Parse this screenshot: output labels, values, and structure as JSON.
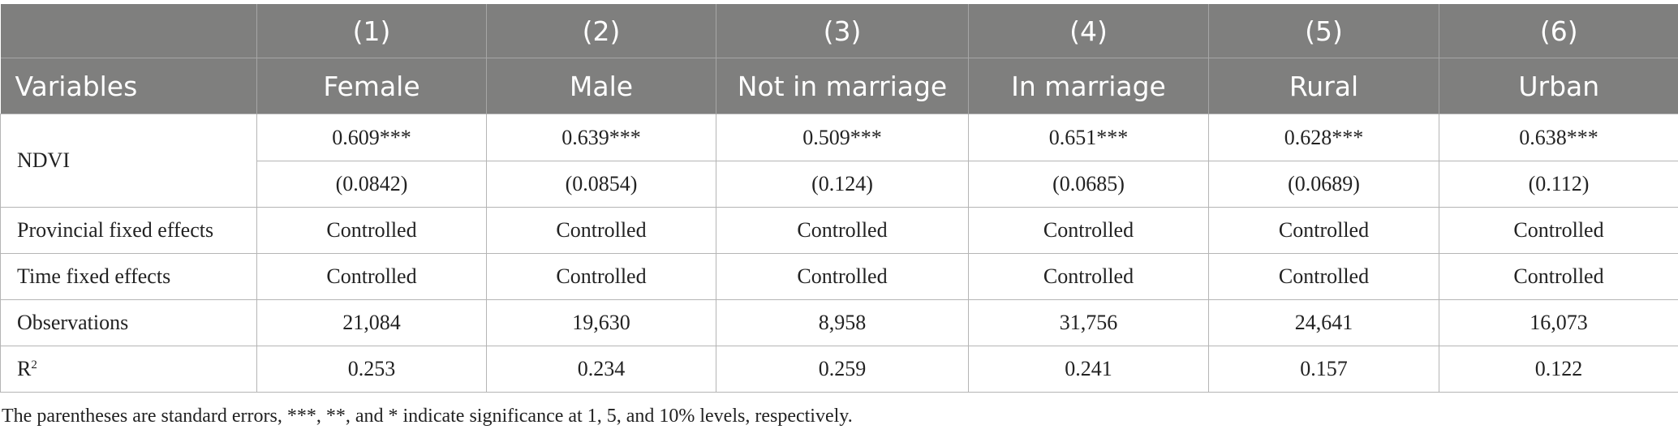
{
  "table": {
    "header_numbers": [
      "(1)",
      "(2)",
      "(3)",
      "(4)",
      "(5)",
      "(6)"
    ],
    "variables_label": "Variables",
    "header_groups": [
      "Female",
      "Male",
      "Not in marriage",
      "In marriage",
      "Rural",
      "Urban"
    ],
    "ndvi_label": "NDVI",
    "ndvi_coef": [
      "0.609***",
      "0.639***",
      "0.509***",
      "0.651***",
      "0.628***",
      "0.638***"
    ],
    "ndvi_se": [
      "(0.0842)",
      "(0.0854)",
      "(0.124)",
      "(0.0685)",
      "(0.0689)",
      "(0.112)"
    ],
    "rows": [
      {
        "label": "Provincial fixed effects",
        "values": [
          "Controlled",
          "Controlled",
          "Controlled",
          "Controlled",
          "Controlled",
          "Controlled"
        ]
      },
      {
        "label": "Time fixed effects",
        "values": [
          "Controlled",
          "Controlled",
          "Controlled",
          "Controlled",
          "Controlled",
          "Controlled"
        ]
      },
      {
        "label": "Observations",
        "values": [
          "21,084",
          "19,630",
          "8,958",
          "31,756",
          "24,641",
          "16,073"
        ]
      }
    ],
    "r2_label": "R",
    "r2_sup": "2",
    "r2_values": [
      "0.253",
      "0.234",
      "0.259",
      "0.241",
      "0.157",
      "0.122"
    ]
  },
  "note": "The parentheses are standard errors, ***, **, and * indicate significance at 1, 5, and 10% levels, respectively."
}
